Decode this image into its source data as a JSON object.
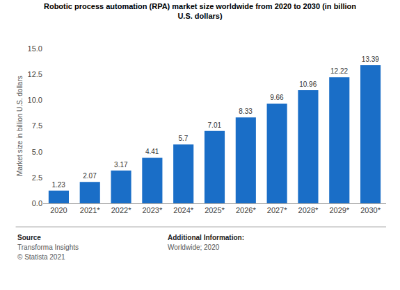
{
  "chart_data": {
    "type": "bar",
    "title": "Robotic process automation (RPA) market size worldwide from 2020 to 2030 (in billion\nU.S. dollars)",
    "ylabel": "Market size in billion U.S. dollars",
    "categories": [
      "2020",
      "2021*",
      "2022*",
      "2023*",
      "2024*",
      "2025*",
      "2026*",
      "2027*",
      "2028*",
      "2029*",
      "2030*"
    ],
    "values": [
      1.23,
      2.07,
      3.17,
      4.41,
      5.7,
      7.01,
      8.33,
      9.66,
      10.96,
      12.22,
      13.39
    ],
    "color": "#1a6ec7",
    "ylim": [
      0,
      15
    ],
    "yticks": [
      {
        "value": 0,
        "label": "0.0"
      },
      2.5,
      {
        "value": 5,
        "label": "5.0"
      },
      7.5,
      {
        "value": 10,
        "label": "10.0"
      },
      12.5,
      {
        "value": 15,
        "label": "15.0"
      }
    ],
    "grid": false,
    "data_labels": true,
    "annotations": [
      "Source",
      "Transforma Insights",
      "© Statista 2021",
      "Additional Information:",
      "Worldwide; 2020"
    ]
  }
}
